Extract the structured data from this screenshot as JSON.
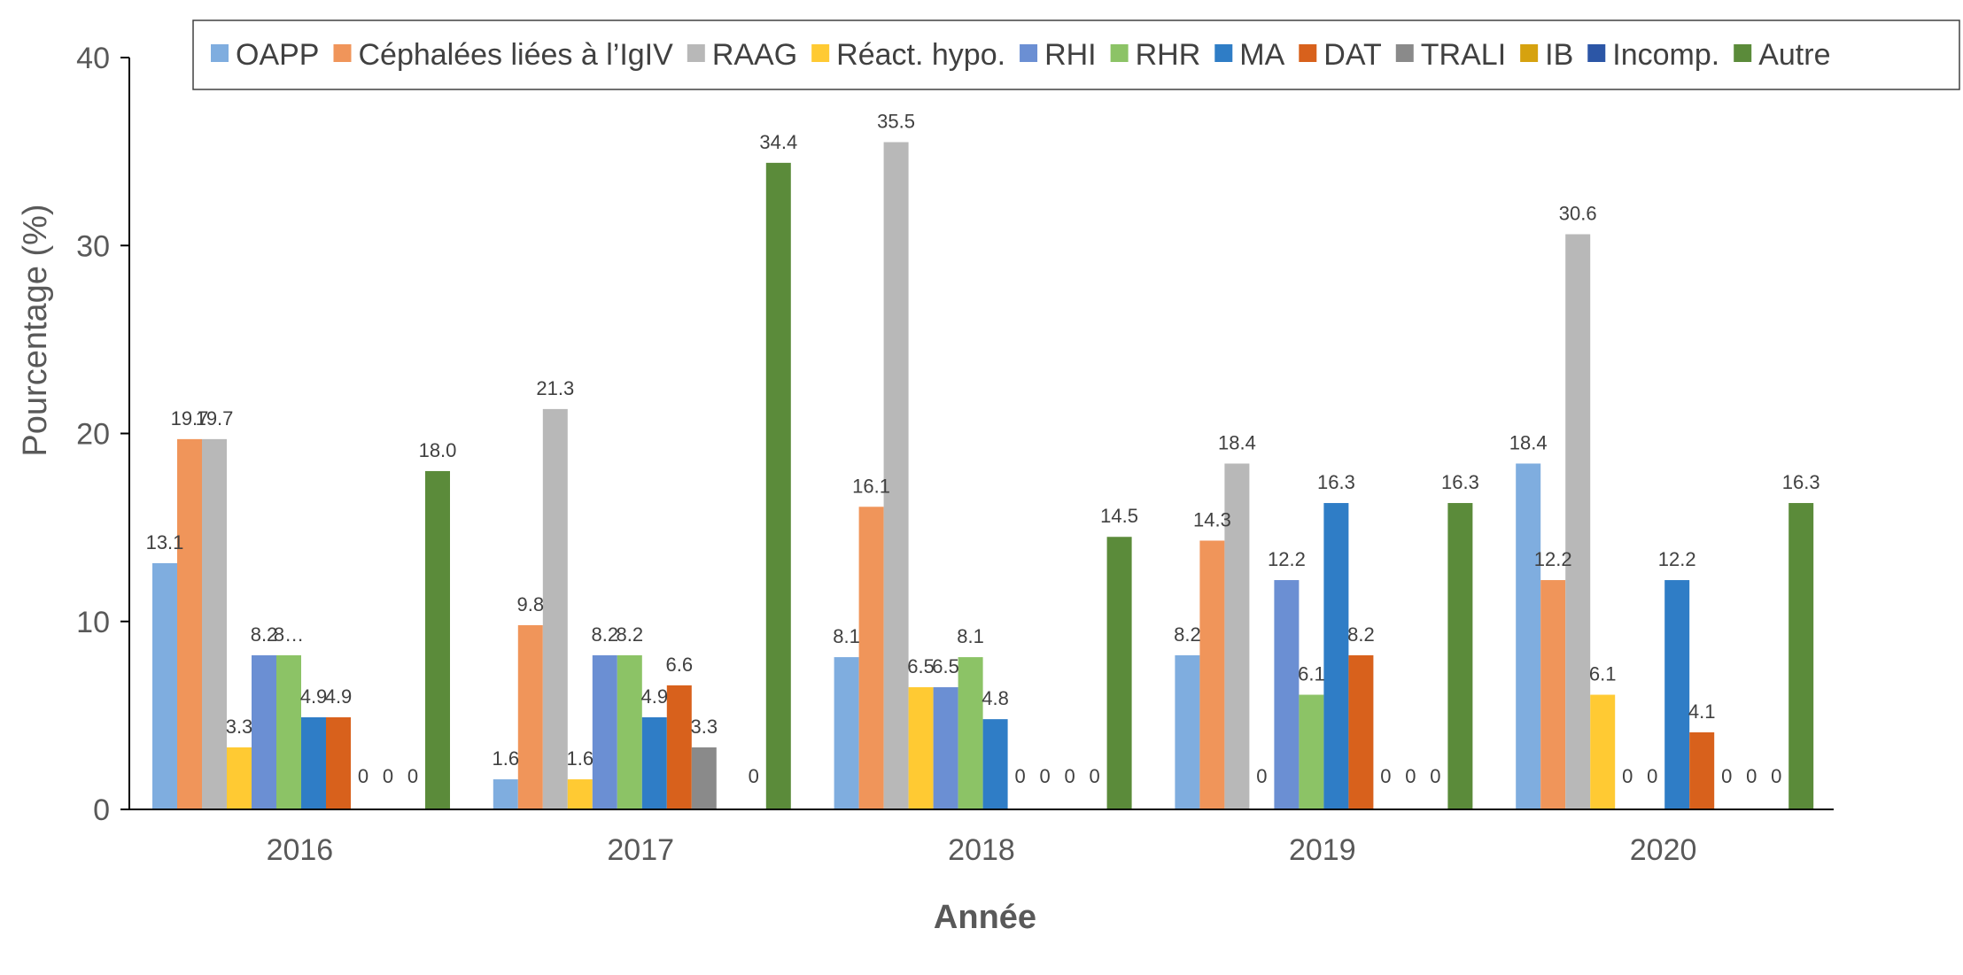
{
  "chart_data": {
    "type": "bar",
    "xlabel": "Année",
    "ylabel": "Pourcentage (%)",
    "ylim": [
      0,
      40
    ],
    "yticks": [
      "0",
      "10",
      "20",
      "30",
      "40"
    ],
    "legend_position": "top",
    "categories": [
      "2016",
      "2017",
      "2018",
      "2019",
      "2020"
    ],
    "series": [
      {
        "name": "OAPP",
        "color": "#7FADDF",
        "values": [
          13.1,
          1.6,
          8.1,
          8.2,
          18.4
        ],
        "labels": [
          "13.1",
          "1.6",
          "8.1",
          "8.2",
          "18.4"
        ]
      },
      {
        "name": "Céphalées liées à l’IgIV",
        "color": "#F0955A",
        "values": [
          19.7,
          9.8,
          16.1,
          14.3,
          12.2
        ],
        "labels": [
          "19.7",
          "9.8",
          "16.1",
          "14.3",
          "12.2"
        ]
      },
      {
        "name": "RAAG",
        "color": "#B8B8B8",
        "values": [
          19.7,
          21.3,
          35.5,
          18.4,
          30.6
        ],
        "labels": [
          "19.7",
          "21.3",
          "35.5",
          "18.4",
          "30.6"
        ]
      },
      {
        "name": "Réact. hypo.",
        "color": "#FFCA33",
        "values": [
          3.3,
          1.6,
          6.5,
          0,
          6.1
        ],
        "labels": [
          "3.3",
          "1.6",
          "6.5",
          "0",
          "6.1"
        ]
      },
      {
        "name": "RHI",
        "color": "#6B8FD3",
        "values": [
          8.2,
          8.2,
          6.5,
          12.2,
          0
        ],
        "labels": [
          "8.2",
          "8.2",
          "6.5",
          "12.2",
          "0"
        ]
      },
      {
        "name": "RHR",
        "color": "#8CC366",
        "values": [
          8.2,
          8.2,
          8.1,
          6.1,
          0
        ],
        "labels": [
          "8…",
          "8.2",
          "8.1",
          "6.1",
          "0"
        ]
      },
      {
        "name": "MA",
        "color": "#2F7DC6",
        "values": [
          4.9,
          4.9,
          4.8,
          16.3,
          12.2
        ],
        "labels": [
          "4.9",
          "4.9",
          "4.8",
          "16.3",
          "12.2"
        ]
      },
      {
        "name": "DAT",
        "color": "#D8611C",
        "values": [
          4.9,
          6.6,
          0,
          8.2,
          4.1
        ],
        "labels": [
          "4.9",
          "6.6",
          "0",
          "8.2",
          "4.1"
        ]
      },
      {
        "name": "TRALI",
        "color": "#8A8A8A",
        "values": [
          0,
          3.3,
          0,
          0,
          0
        ],
        "labels": [
          "0",
          "3.3",
          "0",
          "0",
          "0"
        ]
      },
      {
        "name": "IB",
        "color": "#D6A20F",
        "values": [
          0,
          0,
          0,
          0,
          0
        ],
        "labels": [
          "0",
          "",
          "0",
          "0",
          "0"
        ]
      },
      {
        "name": "Incomp.",
        "color": "#2C56A6",
        "values": [
          0,
          0,
          0,
          0,
          0
        ],
        "labels": [
          "0",
          "0",
          "0",
          "0",
          "0"
        ]
      },
      {
        "name": "Autre",
        "color": "#5B8B3A",
        "values": [
          18.0,
          34.4,
          14.5,
          16.3,
          16.3
        ],
        "labels": [
          "18.0",
          "34.4",
          "14.5",
          "16.3",
          "16.3"
        ]
      }
    ]
  }
}
